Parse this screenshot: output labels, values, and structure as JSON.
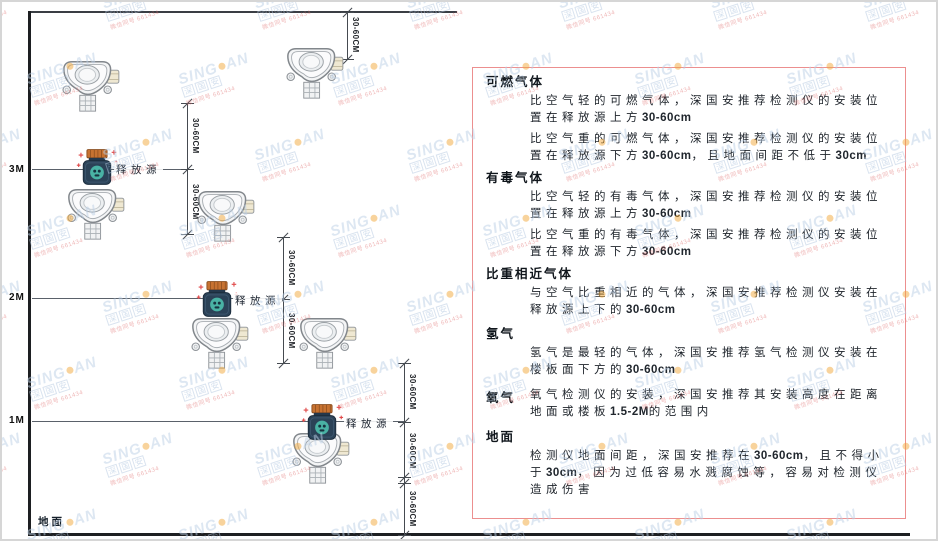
{
  "diagram": {
    "ground_label": "地面",
    "source_label": "释放源",
    "dim_label": "30-60CM",
    "height_labels": [
      {
        "text": "3M"
      },
      {
        "text": "2M"
      },
      {
        "text": "1M"
      }
    ]
  },
  "panel": {
    "border_color": "#ec8f8f",
    "sections": [
      {
        "title": "可燃气体",
        "paragraphs": [
          "比空气轻的可燃气体，深国安推荐检测仪的安装位置在释放源上方30-60cm",
          "比空气重的可燃气体，深国安推荐检测仪的安装位置在释放源下方30-60cm，且地面间距不低于30cm"
        ]
      },
      {
        "title": "有毒气体",
        "paragraphs": [
          "比空气轻的有毒气体，深国安推荐检测仪的安装位置在释放源上方30-60cm",
          "比空气重的有毒气体，深国安推荐检测仪的安装位置在释放源下方30-60cm"
        ]
      },
      {
        "title": "比重相近气体",
        "paragraphs": [
          "与空气比重相近的气体，深国安推荐检测仪安装在释放源上下的30-60cm"
        ]
      },
      {
        "title": "氢气",
        "paragraphs": [
          "氢气是最轻的气体，深国安推荐氢气检测仪安装在楼板面下方的30-60cm"
        ]
      },
      {
        "title": "氧气",
        "paragraphs": [
          "氧气检测仪的安装，深国安推荐其安装高度在距离地面或楼板1.5-2M的范围内"
        ]
      },
      {
        "title": "地面",
        "paragraphs": [
          "检测仪地面间距，深国安推荐在30-60cm，且不得小于30cm，因为过低容易水溅腐蚀等，容易对检测仪造成伤害"
        ]
      }
    ]
  },
  "watermark": {
    "brand_left": "SING",
    "brand_right": "AN",
    "boxed_chars": [
      "深",
      "国",
      "安"
    ],
    "sub_text": "微信同号 661434",
    "text_color": "#bdd0e6",
    "dot_color": "#f2a93b",
    "sub_color": "#e07070"
  }
}
